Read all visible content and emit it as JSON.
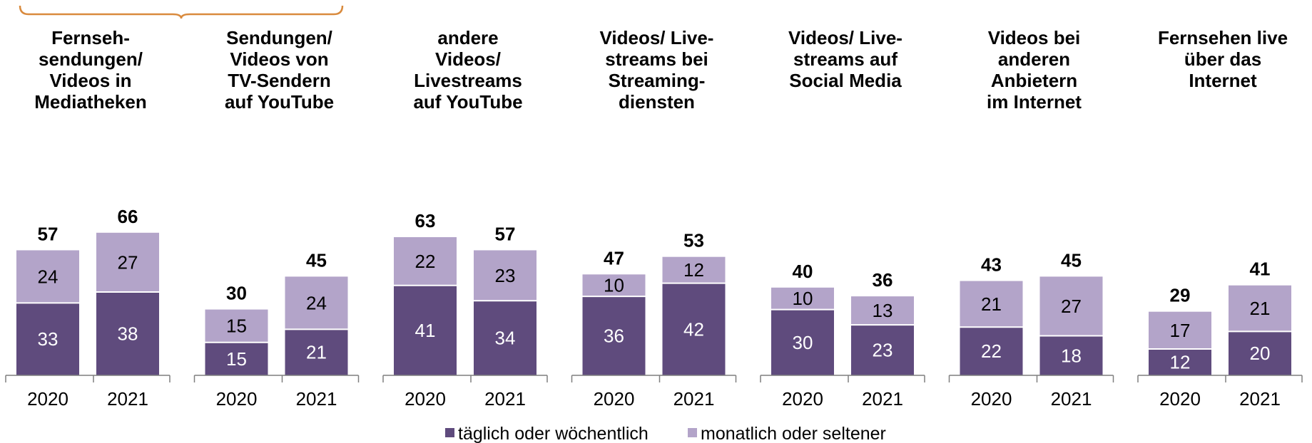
{
  "chart_data": {
    "type": "bar",
    "stacked": true,
    "x": [
      "2020",
      "2021"
    ],
    "groups": [
      {
        "title": [
          "Fernseh-",
          "sendungen/",
          "Videos in",
          "Mediatheken"
        ],
        "values": [
          {
            "x": "2020",
            "daily_weekly": 33,
            "monthly_less": 24,
            "total": 57
          },
          {
            "x": "2021",
            "daily_weekly": 38,
            "monthly_less": 27,
            "total": 66
          }
        ]
      },
      {
        "title": [
          "Sendungen/",
          "Videos von",
          "TV-Sendern",
          "auf YouTube"
        ],
        "values": [
          {
            "x": "2020",
            "daily_weekly": 15,
            "monthly_less": 15,
            "total": 30
          },
          {
            "x": "2021",
            "daily_weekly": 21,
            "monthly_less": 24,
            "total": 45
          }
        ]
      },
      {
        "title": [
          "andere",
          "Videos/",
          "Livestreams",
          "auf YouTube"
        ],
        "values": [
          {
            "x": "2020",
            "daily_weekly": 41,
            "monthly_less": 22,
            "total": 63
          },
          {
            "x": "2021",
            "daily_weekly": 34,
            "monthly_less": 23,
            "total": 57
          }
        ]
      },
      {
        "title": [
          "Videos/ Live-",
          "streams bei",
          "Streaming-",
          "diensten"
        ],
        "values": [
          {
            "x": "2020",
            "daily_weekly": 36,
            "monthly_less": 10,
            "total": 47
          },
          {
            "x": "2021",
            "daily_weekly": 42,
            "monthly_less": 12,
            "total": 53
          }
        ]
      },
      {
        "title": [
          "Videos/ Live-",
          "streams auf",
          "Social Media"
        ],
        "values": [
          {
            "x": "2020",
            "daily_weekly": 30,
            "monthly_less": 10,
            "total": 40
          },
          {
            "x": "2021",
            "daily_weekly": 23,
            "monthly_less": 13,
            "total": 36
          }
        ]
      },
      {
        "title": [
          "Videos bei",
          "anderen",
          "Anbietern",
          "im Internet"
        ],
        "values": [
          {
            "x": "2020",
            "daily_weekly": 22,
            "monthly_less": 21,
            "total": 43
          },
          {
            "x": "2021",
            "daily_weekly": 18,
            "monthly_less": 27,
            "total": 45
          }
        ]
      },
      {
        "title": [
          "Fernsehen live",
          "über das",
          "Internet"
        ],
        "values": [
          {
            "x": "2020",
            "daily_weekly": 12,
            "monthly_less": 17,
            "total": 29
          },
          {
            "x": "2021",
            "daily_weekly": 20,
            "monthly_less": 21,
            "total": 41
          }
        ]
      }
    ],
    "series": [
      {
        "key": "daily_weekly",
        "name": "täglich oder wöchentlich",
        "color": "#5f4b7d",
        "label_color": "#ffffff"
      },
      {
        "key": "monthly_less",
        "name": "monatlich oder seltener",
        "color": "#b3a4c9",
        "label_color": "#000000"
      }
    ],
    "bracket": {
      "spans_groups": [
        0,
        1
      ],
      "color": "#d98a3d"
    },
    "legend_position": "bottom",
    "grid": false,
    "ylim": [
      0,
      70
    ]
  }
}
